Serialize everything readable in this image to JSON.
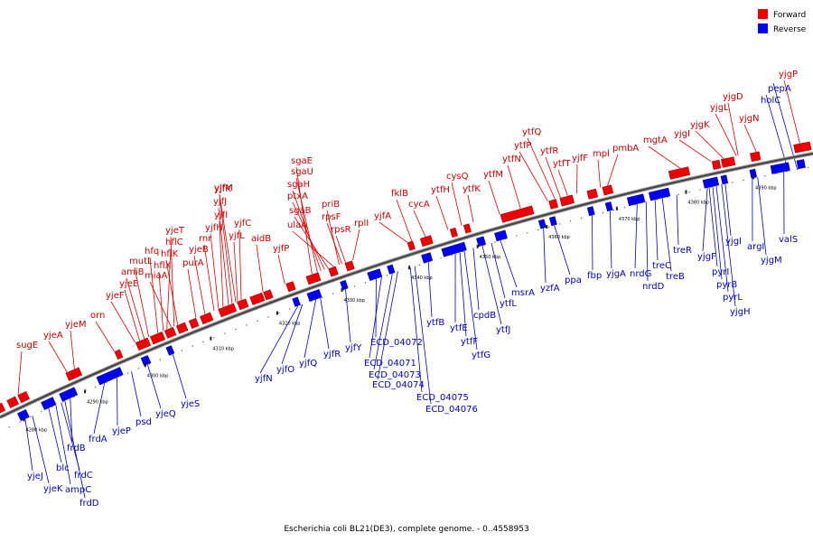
{
  "legend": {
    "forward_label": "Forward",
    "reverse_label": "Reverse",
    "forward_color": "#ee0000",
    "reverse_color": "#0000ee"
  },
  "footer": "Escherichia coli BL21(DE3), complete genome. - 0..4558953",
  "ticks": [
    "4280 kbp",
    "4290 kbp",
    "4300 kbp",
    "4310 kbp",
    "4320 kbp",
    "4330 kbp",
    "4340 kbp",
    "4350 kbp",
    "4360 kbp",
    "4370 kbp",
    "4380 kbp",
    "4390 kbp"
  ],
  "forward_genes": [
    "sugE",
    "yjeA",
    "yjeM",
    "orn",
    "yjeF",
    "yjeE",
    "amiB",
    "mutL",
    "hfq",
    "hflX",
    "hflC",
    "miaA",
    "yjeT",
    "hflK",
    "purA",
    "yjeB",
    "rnr",
    "yjfH",
    "yjfI",
    "yjfJ",
    "yjfK",
    "yjfM",
    "yjfL",
    "yjfC",
    "aidB",
    "yjfP",
    "sgaE",
    "sgaU",
    "sgaH",
    "ptxA",
    "sgaB",
    "ulaA",
    "priB",
    "rpsF",
    "rpsR",
    "rplI",
    "yjfA",
    "fklB",
    "cycA",
    "ytfH",
    "cysQ",
    "ytfK",
    "ytfM",
    "ytfN",
    "ytfP",
    "ytfQ",
    "ytfR",
    "ytfT",
    "yjfF",
    "mpl",
    "pmbA",
    "mgtA",
    "yjgI",
    "yjgK",
    "yjgL",
    "yjgD",
    "yjgN",
    "yjgP"
  ],
  "reverse_genes": [
    "yjeJ",
    "yjeK",
    "blc",
    "ampC",
    "frdC",
    "frdD",
    "frdB",
    "frdA",
    "yjeP",
    "psd",
    "yjeQ",
    "yjeS",
    "yjfN",
    "yjfO",
    "yjfQ",
    "yjfR",
    "yjfY",
    "ECD_04072",
    "ECD_04071",
    "ECD_04073",
    "ECD_04074",
    "ECD_04075",
    "ECD_04076",
    "ytfB",
    "ytfE",
    "ytfF",
    "ytfG",
    "cpdB",
    "ytfJ",
    "ytfL",
    "msrA",
    "yzfA",
    "ppa",
    "fbp",
    "yjgA",
    "nrdG",
    "nrdD",
    "treC",
    "treB",
    "treR",
    "yjgF",
    "pyrI",
    "pyrB",
    "pyrL",
    "yjgH",
    "yjgI",
    "argI",
    "yjgM",
    "valS",
    "holC",
    "pepA"
  ]
}
